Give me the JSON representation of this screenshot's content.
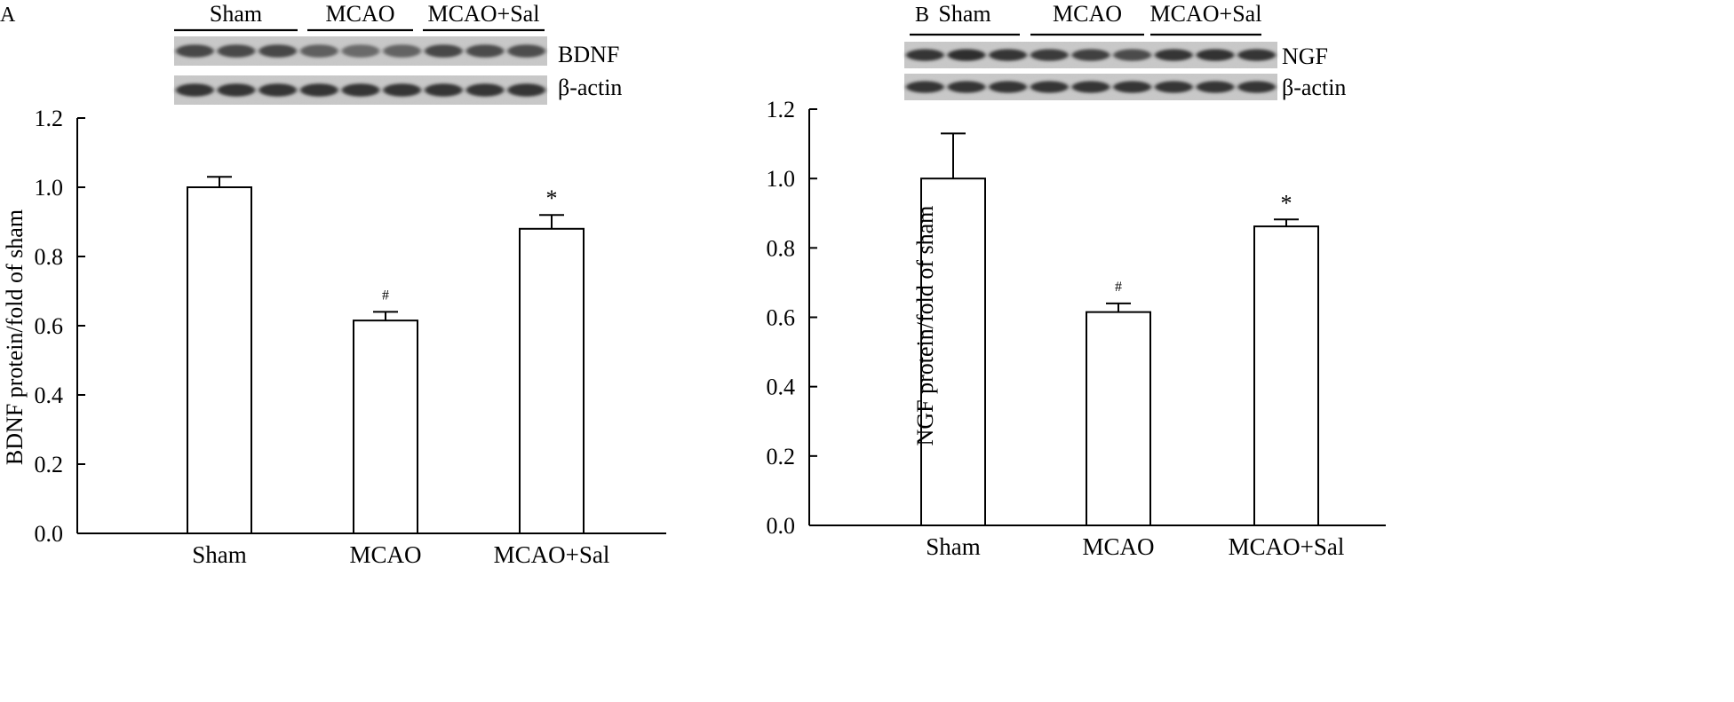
{
  "chart_data": [
    {
      "type": "bar",
      "panel_label": "A",
      "categories": [
        "Sham",
        "MCAO",
        "MCAO+Sal"
      ],
      "values": [
        1.0,
        0.615,
        0.88
      ],
      "errors": [
        0.03,
        0.025,
        0.04
      ],
      "annotations": [
        "",
        "#",
        "*"
      ],
      "ylabel": "BDNF protein/fold of sham",
      "ylim": [
        0,
        1.2
      ],
      "yticks": [
        "0.0",
        "0.2",
        "0.4",
        "0.6",
        "0.8",
        "1.0",
        "1.2"
      ],
      "blot": {
        "groups": [
          "Sham",
          "MCAO",
          "MCAO+Sal"
        ],
        "proteins": [
          "BDNF",
          "β-actin"
        ]
      }
    },
    {
      "type": "bar",
      "panel_label": "B",
      "categories": [
        "Sham",
        "MCAO",
        "MCAO+Sal"
      ],
      "values": [
        1.0,
        0.615,
        0.862
      ],
      "errors": [
        0.13,
        0.025,
        0.02
      ],
      "annotations": [
        "",
        "#",
        "*"
      ],
      "ylabel": "NGF protein/fold of sham",
      "ylim": [
        0,
        1.2
      ],
      "yticks": [
        "0.0",
        "0.2",
        "0.4",
        "0.6",
        "0.8",
        "1.0",
        "1.2"
      ],
      "blot": {
        "groups": [
          "Sham",
          "MCAO",
          "MCAO+Sal"
        ],
        "proteins": [
          "NGF",
          "β-actin"
        ]
      }
    }
  ]
}
